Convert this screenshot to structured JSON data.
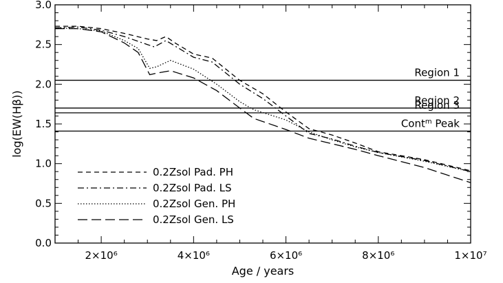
{
  "chart_data": {
    "type": "line",
    "xlabel": "Age / years",
    "ylabel": "log(EW(Hβ))",
    "xlim": [
      1000000,
      10000000
    ],
    "ylim": [
      0.0,
      3.0
    ],
    "grid": false,
    "legend_position": "bottom-left",
    "x_ticks": [
      {
        "value": 2000000,
        "label": "2×10⁶"
      },
      {
        "value": 4000000,
        "label": "4×10⁶"
      },
      {
        "value": 6000000,
        "label": "6×10⁶"
      },
      {
        "value": 8000000,
        "label": "8×10⁶"
      },
      {
        "value": 10000000,
        "label": "1×10⁷"
      }
    ],
    "y_ticks": [
      "0.0",
      "0.5",
      "1.0",
      "1.5",
      "2.0",
      "2.5",
      "3.0"
    ],
    "reference_lines": [
      {
        "y": 2.05,
        "label": "Region 1"
      },
      {
        "y": 1.7,
        "label": "Region 2"
      },
      {
        "y": 1.64,
        "label": "Region 3"
      },
      {
        "y": 1.41,
        "label": "Cont",
        "superscript": "m",
        "label_suffix": " Peak"
      }
    ],
    "series": [
      {
        "name": "0.2Zsol Pad. PH",
        "dash": "7,5",
        "x": [
          1000000,
          1500000,
          2000000,
          2500000,
          3000000,
          3200000,
          3400000,
          3600000,
          4000000,
          4400000,
          5000000,
          5500000,
          6000000,
          6500000,
          7000000,
          7500000,
          8000000,
          9000000,
          10000000
        ],
        "y": [
          2.73,
          2.73,
          2.7,
          2.64,
          2.57,
          2.55,
          2.6,
          2.52,
          2.38,
          2.33,
          2.05,
          1.88,
          1.65,
          1.44,
          1.36,
          1.26,
          1.15,
          1.05,
          0.91
        ]
      },
      {
        "name": "0.2Zsol Pad. LS",
        "dash": "9,4,2,4",
        "x": [
          1000000,
          1500000,
          2000000,
          2500000,
          3000000,
          3150000,
          3400000,
          4000000,
          4400000,
          5000000,
          5500000,
          6000000,
          6500000,
          7000000,
          7500000,
          8000000,
          9000000,
          10000000
        ],
        "y": [
          2.71,
          2.72,
          2.68,
          2.6,
          2.5,
          2.47,
          2.55,
          2.34,
          2.28,
          2.0,
          1.82,
          1.6,
          1.38,
          1.31,
          1.22,
          1.14,
          1.04,
          0.9
        ]
      },
      {
        "name": "0.2Zsol Gen. PH",
        "dash": "1.5,2.5",
        "x": [
          1000000,
          1500000,
          2000000,
          2500000,
          2800000,
          3050000,
          3200000,
          3500000,
          4000000,
          4500000,
          5000000,
          5300000,
          6000000,
          6500000,
          7000000,
          7500000,
          8000000,
          9000000,
          10000000
        ],
        "y": [
          2.71,
          2.7,
          2.67,
          2.55,
          2.45,
          2.2,
          2.22,
          2.3,
          2.19,
          2.0,
          1.78,
          1.68,
          1.55,
          1.4,
          1.3,
          1.21,
          1.14,
          1.03,
          0.9
        ]
      },
      {
        "name": "0.2Zsol Gen. LS",
        "dash": "14,6",
        "x": [
          1000000,
          1500000,
          2000000,
          2500000,
          2800000,
          3050000,
          3200000,
          3500000,
          4000000,
          4500000,
          5000000,
          5300000,
          6000000,
          6500000,
          7000000,
          7500000,
          8000000,
          9000000,
          10000000
        ],
        "y": [
          2.7,
          2.7,
          2.66,
          2.52,
          2.4,
          2.12,
          2.14,
          2.17,
          2.08,
          1.92,
          1.7,
          1.57,
          1.43,
          1.32,
          1.25,
          1.18,
          1.1,
          0.95,
          0.76
        ]
      }
    ]
  }
}
